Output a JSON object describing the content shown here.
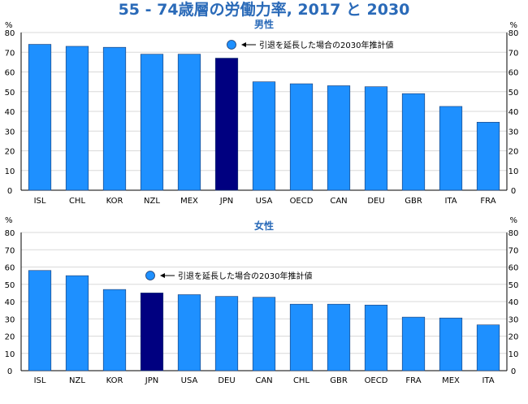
{
  "title": "55 - 74歳層の労働力率, 2017 と 2030",
  "colors": {
    "bar": "#1e90ff",
    "highlight": "#000080",
    "title": "#2a6ab8",
    "subtitle": "#2a6ab8",
    "text": "#000000",
    "grid": "#d9d9d9"
  },
  "chart_data": [
    {
      "type": "bar",
      "subtitle": "男性",
      "y_unit_label": "%",
      "ylim": [
        0,
        80
      ],
      "yticks": [
        0,
        10,
        20,
        30,
        40,
        50,
        60,
        70,
        80
      ],
      "grid": true,
      "highlight_category": "JPN",
      "categories": [
        "ISL",
        "CHL",
        "KOR",
        "NZL",
        "MEX",
        "JPN",
        "USA",
        "OECD",
        "CAN",
        "DEU",
        "GBR",
        "ITA",
        "FRA"
      ],
      "values": [
        74,
        73,
        72.5,
        69,
        69,
        67,
        55,
        54,
        53,
        52.5,
        49,
        42.5,
        34.5
      ],
      "marker": {
        "label": "引退を延長した場合の2030年推計値",
        "symbol": "circle",
        "legend_only": true
      }
    },
    {
      "type": "bar",
      "subtitle": "女性",
      "y_unit_label": "%",
      "ylim": [
        0,
        80
      ],
      "yticks": [
        0,
        10,
        20,
        30,
        40,
        50,
        60,
        70,
        80
      ],
      "grid": true,
      "highlight_category": "JPN",
      "categories": [
        "ISL",
        "NZL",
        "KOR",
        "JPN",
        "USA",
        "DEU",
        "CAN",
        "CHL",
        "GBR",
        "OECD",
        "FRA",
        "MEX",
        "ITA"
      ],
      "values": [
        58,
        55,
        47,
        45,
        44,
        43,
        42.5,
        38.5,
        38.5,
        38,
        31,
        30.5,
        26.5
      ],
      "marker": {
        "label": "引退を延長した場合の2030年推計値",
        "symbol": "circle",
        "legend_only": true
      }
    }
  ]
}
